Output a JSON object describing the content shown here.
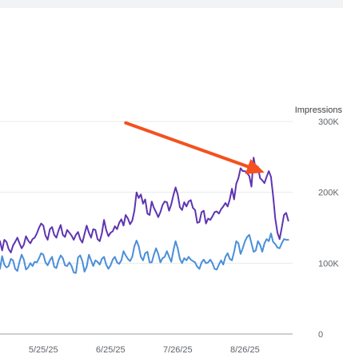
{
  "chart_data": {
    "type": "line",
    "title": "",
    "xlabel": "",
    "ylabel": "Impressions",
    "ylim": [
      0,
      300000
    ],
    "x_start": "2025-05-05",
    "x_end": "2025-09-17",
    "y_ticks": [
      {
        "value": 0,
        "label": "0"
      },
      {
        "value": 100000,
        "label": "100K"
      },
      {
        "value": 200000,
        "label": "200K"
      },
      {
        "value": 300000,
        "label": "300K"
      }
    ],
    "x_ticks": [
      {
        "date": "2025-05-25",
        "label": "5/25/25"
      },
      {
        "date": "2025-06-25",
        "label": "6/25/25"
      },
      {
        "date": "2025-07-26",
        "label": "7/26/25"
      },
      {
        "date": "2025-08-26",
        "label": "8/26/25"
      }
    ],
    "grid": true,
    "series": [
      {
        "color": "#5e35b1",
        "axis": "right",
        "points": [
          [
            "2025-05-05",
            131000
          ],
          [
            "2025-05-06",
            118000
          ],
          [
            "2025-05-07",
            133000
          ],
          [
            "2025-05-08",
            130000
          ],
          [
            "2025-05-09",
            120000
          ],
          [
            "2025-05-10",
            115000
          ],
          [
            "2025-05-11",
            125000
          ],
          [
            "2025-05-12",
            130000
          ],
          [
            "2025-05-13",
            136000
          ],
          [
            "2025-05-14",
            128000
          ],
          [
            "2025-05-15",
            121000
          ],
          [
            "2025-05-16",
            126000
          ],
          [
            "2025-05-17",
            138000
          ],
          [
            "2025-05-18",
            132000
          ],
          [
            "2025-05-19",
            128000
          ],
          [
            "2025-05-20",
            134000
          ],
          [
            "2025-05-21",
            136000
          ],
          [
            "2025-05-22",
            142000
          ],
          [
            "2025-05-23",
            150000
          ],
          [
            "2025-05-24",
            156000
          ],
          [
            "2025-05-25",
            153000
          ],
          [
            "2025-05-26",
            139000
          ],
          [
            "2025-05-27",
            133000
          ],
          [
            "2025-05-28",
            148000
          ],
          [
            "2025-05-29",
            151000
          ],
          [
            "2025-05-30",
            140000
          ],
          [
            "2025-05-31",
            136000
          ],
          [
            "2025-06-01",
            146000
          ],
          [
            "2025-06-02",
            154000
          ],
          [
            "2025-06-03",
            140000
          ],
          [
            "2025-06-04",
            137000
          ],
          [
            "2025-06-05",
            147000
          ],
          [
            "2025-06-06",
            143000
          ],
          [
            "2025-06-07",
            139000
          ],
          [
            "2025-06-08",
            133000
          ],
          [
            "2025-06-09",
            140000
          ],
          [
            "2025-06-10",
            144000
          ],
          [
            "2025-06-11",
            134000
          ],
          [
            "2025-06-12",
            129000
          ],
          [
            "2025-06-13",
            141000
          ],
          [
            "2025-06-14",
            153000
          ],
          [
            "2025-06-15",
            143000
          ],
          [
            "2025-06-16",
            136000
          ],
          [
            "2025-06-17",
            148000
          ],
          [
            "2025-06-18",
            147000
          ],
          [
            "2025-06-19",
            134000
          ],
          [
            "2025-06-20",
            131000
          ],
          [
            "2025-06-21",
            142000
          ],
          [
            "2025-06-22",
            161000
          ],
          [
            "2025-06-23",
            147000
          ],
          [
            "2025-06-24",
            138000
          ],
          [
            "2025-06-25",
            143000
          ],
          [
            "2025-06-26",
            145000
          ],
          [
            "2025-06-27",
            152000
          ],
          [
            "2025-06-28",
            148000
          ],
          [
            "2025-06-29",
            157000
          ],
          [
            "2025-06-30",
            162000
          ],
          [
            "2025-07-01",
            153000
          ],
          [
            "2025-07-02",
            168000
          ],
          [
            "2025-07-03",
            163000
          ],
          [
            "2025-07-04",
            155000
          ],
          [
            "2025-07-05",
            160000
          ],
          [
            "2025-07-06",
            174000
          ],
          [
            "2025-07-07",
            200000
          ],
          [
            "2025-07-08",
            192000
          ],
          [
            "2025-07-09",
            197000
          ],
          [
            "2025-07-10",
            184000
          ],
          [
            "2025-07-11",
            190000
          ],
          [
            "2025-07-12",
            170000
          ],
          [
            "2025-07-13",
            168000
          ],
          [
            "2025-07-14",
            187000
          ],
          [
            "2025-07-15",
            178000
          ],
          [
            "2025-07-16",
            172000
          ],
          [
            "2025-07-17",
            165000
          ],
          [
            "2025-07-18",
            172000
          ],
          [
            "2025-07-19",
            182000
          ],
          [
            "2025-07-20",
            187000
          ],
          [
            "2025-07-21",
            186000
          ],
          [
            "2025-07-22",
            174000
          ],
          [
            "2025-07-23",
            183000
          ],
          [
            "2025-07-24",
            196000
          ],
          [
            "2025-07-25",
            207000
          ],
          [
            "2025-07-26",
            197000
          ],
          [
            "2025-07-27",
            179000
          ],
          [
            "2025-07-28",
            175000
          ],
          [
            "2025-07-29",
            186000
          ],
          [
            "2025-07-30",
            180000
          ],
          [
            "2025-07-31",
            187000
          ],
          [
            "2025-08-01",
            189000
          ],
          [
            "2025-08-02",
            178000
          ],
          [
            "2025-08-03",
            175000
          ],
          [
            "2025-08-04",
            157000
          ],
          [
            "2025-08-05",
            158000
          ],
          [
            "2025-08-06",
            172000
          ],
          [
            "2025-08-07",
            174000
          ],
          [
            "2025-08-08",
            156000
          ],
          [
            "2025-08-09",
            163000
          ],
          [
            "2025-08-10",
            161000
          ],
          [
            "2025-08-11",
            166000
          ],
          [
            "2025-08-12",
            172000
          ],
          [
            "2025-08-13",
            173000
          ],
          [
            "2025-08-14",
            170000
          ],
          [
            "2025-08-15",
            176000
          ],
          [
            "2025-08-16",
            180000
          ],
          [
            "2025-08-17",
            185000
          ],
          [
            "2025-08-18",
            180000
          ],
          [
            "2025-08-19",
            190000
          ],
          [
            "2025-08-20",
            205000
          ],
          [
            "2025-08-21",
            190000
          ],
          [
            "2025-08-22",
            212000
          ],
          [
            "2025-08-23",
            220000
          ],
          [
            "2025-08-24",
            234000
          ],
          [
            "2025-08-25",
            230000
          ],
          [
            "2025-08-26",
            230000
          ],
          [
            "2025-08-27",
            227000
          ],
          [
            "2025-08-28",
            223000
          ],
          [
            "2025-08-29",
            208000
          ],
          [
            "2025-08-30",
            249000
          ],
          [
            "2025-08-31",
            232000
          ],
          [
            "2025-09-01",
            236000
          ],
          [
            "2025-09-02",
            220000
          ],
          [
            "2025-09-03",
            217000
          ],
          [
            "2025-09-04",
            213000
          ],
          [
            "2025-09-05",
            222000
          ],
          [
            "2025-09-06",
            230000
          ],
          [
            "2025-09-07",
            222000
          ],
          [
            "2025-09-08",
            195000
          ],
          [
            "2025-09-09",
            163000
          ],
          [
            "2025-09-10",
            143000
          ],
          [
            "2025-09-11",
            134000
          ],
          [
            "2025-09-12",
            150000
          ],
          [
            "2025-09-13",
            168000
          ],
          [
            "2025-09-14",
            171000
          ],
          [
            "2025-09-15",
            160000
          ]
        ]
      },
      {
        "color": "#4a8fd9",
        "axis": "right",
        "points": [
          [
            "2025-05-05",
            92000
          ],
          [
            "2025-05-06",
            110000
          ],
          [
            "2025-05-07",
            98000
          ],
          [
            "2025-05-08",
            94000
          ],
          [
            "2025-05-09",
            96000
          ],
          [
            "2025-05-10",
            106000
          ],
          [
            "2025-05-11",
            104000
          ],
          [
            "2025-05-12",
            92000
          ],
          [
            "2025-05-13",
            89000
          ],
          [
            "2025-05-14",
            102000
          ],
          [
            "2025-05-15",
            112000
          ],
          [
            "2025-05-16",
            105000
          ],
          [
            "2025-05-17",
            91000
          ],
          [
            "2025-05-18",
            94000
          ],
          [
            "2025-05-19",
            100000
          ],
          [
            "2025-05-20",
            96000
          ],
          [
            "2025-05-21",
            102000
          ],
          [
            "2025-05-22",
            101000
          ],
          [
            "2025-05-23",
            107000
          ],
          [
            "2025-05-24",
            114000
          ],
          [
            "2025-05-25",
            112000
          ],
          [
            "2025-05-26",
            101000
          ],
          [
            "2025-05-27",
            97000
          ],
          [
            "2025-05-28",
            104000
          ],
          [
            "2025-05-29",
            109000
          ],
          [
            "2025-05-30",
            95000
          ],
          [
            "2025-05-31",
            93000
          ],
          [
            "2025-06-01",
            104000
          ],
          [
            "2025-06-02",
            111000
          ],
          [
            "2025-06-03",
            107000
          ],
          [
            "2025-06-04",
            97000
          ],
          [
            "2025-06-05",
            96000
          ],
          [
            "2025-06-06",
            101000
          ],
          [
            "2025-06-07",
            96000
          ],
          [
            "2025-06-08",
            87000
          ],
          [
            "2025-06-09",
            86000
          ],
          [
            "2025-06-10",
            108000
          ],
          [
            "2025-06-11",
            111000
          ],
          [
            "2025-06-12",
            103000
          ],
          [
            "2025-06-13",
            88000
          ],
          [
            "2025-06-14",
            95000
          ],
          [
            "2025-06-15",
            112000
          ],
          [
            "2025-06-16",
            104000
          ],
          [
            "2025-06-17",
            96000
          ],
          [
            "2025-06-18",
            104000
          ],
          [
            "2025-06-19",
            102000
          ],
          [
            "2025-06-20",
            98000
          ],
          [
            "2025-06-21",
            106000
          ],
          [
            "2025-06-22",
            109000
          ],
          [
            "2025-06-23",
            98000
          ],
          [
            "2025-06-24",
            92000
          ],
          [
            "2025-06-25",
            97000
          ],
          [
            "2025-06-26",
            105000
          ],
          [
            "2025-06-27",
            109000
          ],
          [
            "2025-06-28",
            101000
          ],
          [
            "2025-06-29",
            99000
          ],
          [
            "2025-06-30",
            104000
          ],
          [
            "2025-07-01",
            117000
          ],
          [
            "2025-07-02",
            111000
          ],
          [
            "2025-07-03",
            106000
          ],
          [
            "2025-07-04",
            103000
          ],
          [
            "2025-07-05",
            109000
          ],
          [
            "2025-07-06",
            124000
          ],
          [
            "2025-07-07",
            132000
          ],
          [
            "2025-07-08",
            124000
          ],
          [
            "2025-07-09",
            109000
          ],
          [
            "2025-07-10",
            104000
          ],
          [
            "2025-07-11",
            114000
          ],
          [
            "2025-07-12",
            116000
          ],
          [
            "2025-07-13",
            101000
          ],
          [
            "2025-07-14",
            101000
          ],
          [
            "2025-07-15",
            112000
          ],
          [
            "2025-07-16",
            121000
          ],
          [
            "2025-07-17",
            113000
          ],
          [
            "2025-07-18",
            101000
          ],
          [
            "2025-07-19",
            107000
          ],
          [
            "2025-07-20",
            109000
          ],
          [
            "2025-07-21",
            117000
          ],
          [
            "2025-07-22",
            109000
          ],
          [
            "2025-07-23",
            102000
          ],
          [
            "2025-07-24",
            118000
          ],
          [
            "2025-07-25",
            131000
          ],
          [
            "2025-07-26",
            121000
          ],
          [
            "2025-07-27",
            106000
          ],
          [
            "2025-07-28",
            100000
          ],
          [
            "2025-07-29",
            107000
          ],
          [
            "2025-07-30",
            104000
          ],
          [
            "2025-07-31",
            109000
          ],
          [
            "2025-08-01",
            105000
          ],
          [
            "2025-08-02",
            103000
          ],
          [
            "2025-08-03",
            101000
          ],
          [
            "2025-08-04",
            95000
          ],
          [
            "2025-08-05",
            92000
          ],
          [
            "2025-08-06",
            101000
          ],
          [
            "2025-08-07",
            105000
          ],
          [
            "2025-08-08",
            100000
          ],
          [
            "2025-08-09",
            101000
          ],
          [
            "2025-08-10",
            105000
          ],
          [
            "2025-08-11",
            100000
          ],
          [
            "2025-08-12",
            92000
          ],
          [
            "2025-08-13",
            91000
          ],
          [
            "2025-08-14",
            98000
          ],
          [
            "2025-08-15",
            104000
          ],
          [
            "2025-08-16",
            98000
          ],
          [
            "2025-08-17",
            109000
          ],
          [
            "2025-08-18",
            114000
          ],
          [
            "2025-08-19",
            106000
          ],
          [
            "2025-08-20",
            104000
          ],
          [
            "2025-08-21",
            116000
          ],
          [
            "2025-08-22",
            131000
          ],
          [
            "2025-08-23",
            128000
          ],
          [
            "2025-08-24",
            113000
          ],
          [
            "2025-08-25",
            121000
          ],
          [
            "2025-08-26",
            131000
          ],
          [
            "2025-08-27",
            137000
          ],
          [
            "2025-08-28",
            140000
          ],
          [
            "2025-08-29",
            128000
          ],
          [
            "2025-08-30",
            116000
          ],
          [
            "2025-08-31",
            118000
          ],
          [
            "2025-09-01",
            131000
          ],
          [
            "2025-09-02",
            126000
          ],
          [
            "2025-09-03",
            116000
          ],
          [
            "2025-09-04",
            128000
          ],
          [
            "2025-09-05",
            134000
          ],
          [
            "2025-09-06",
            131000
          ],
          [
            "2025-09-07",
            142000
          ],
          [
            "2025-09-08",
            130000
          ],
          [
            "2025-09-09",
            127000
          ],
          [
            "2025-09-10",
            122000
          ],
          [
            "2025-09-11",
            121000
          ],
          [
            "2025-09-12",
            128000
          ],
          [
            "2025-09-13",
            134000
          ],
          [
            "2025-09-14",
            133000
          ],
          [
            "2025-09-15",
            133000
          ]
        ]
      }
    ],
    "annotation": {
      "type": "arrow",
      "color": "#f4511e",
      "from": [
        "2025-07-02",
        298000
      ],
      "to": [
        "2025-09-04",
        228000
      ]
    }
  }
}
